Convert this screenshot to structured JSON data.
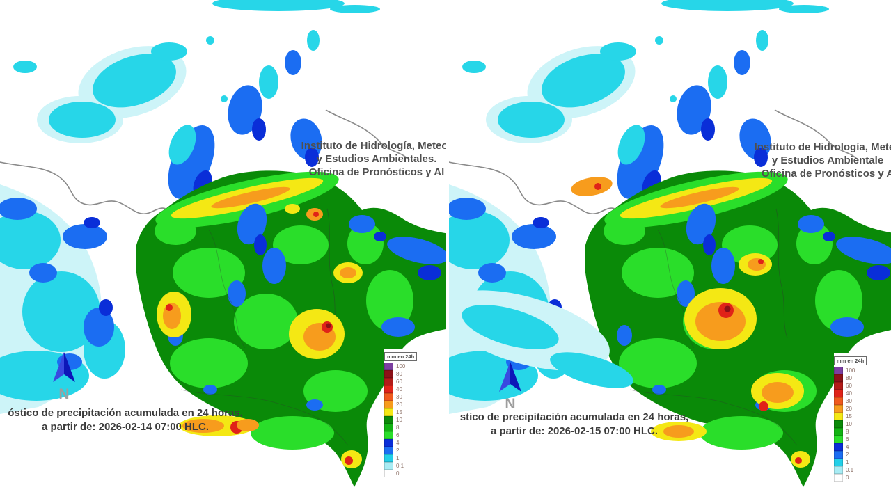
{
  "page": {
    "description": "Two side-by-side 24-hour accumulated precipitation forecast maps of Colombia"
  },
  "panels": [
    {
      "institute": {
        "line1": "Instituto de Hidrología, Meteor",
        "line2": "y Estudios Ambientales.",
        "line3": "Oficina de Pronósticos y Al"
      },
      "caption": {
        "line1": "óstico de precipitación acumulada en 24 horas,",
        "line2": "a partir de: 2026-02-14 07:00 HLC."
      },
      "forecast_start": "2026-02-14 07:00 HLC",
      "north_label": "N"
    },
    {
      "institute": {
        "line1": "Instituto de Hidrología, Meteo",
        "line2": "y Estudios Ambientale",
        "line3": "Oficina de Pronósticos y A"
      },
      "caption": {
        "line1": "stico de precipitación acumulada en 24 horas,",
        "line2": "a partir de: 2026-02-15 07:00 HLC."
      },
      "forecast_start": "2026-02-15 07:00 HLC",
      "north_label": "N"
    }
  ],
  "legend": {
    "title": "mm en 24h",
    "entries": [
      {
        "value": "100",
        "color": "#7b3fa0"
      },
      {
        "value": "80",
        "color": "#8c1117"
      },
      {
        "value": "60",
        "color": "#b31b18"
      },
      {
        "value": "40",
        "color": "#e02318"
      },
      {
        "value": "30",
        "color": "#f05a1d"
      },
      {
        "value": "20",
        "color": "#f79c1d"
      },
      {
        "value": "15",
        "color": "#f4e814"
      },
      {
        "value": "10",
        "color": "#0a8a08"
      },
      {
        "value": "8",
        "color": "#12b312"
      },
      {
        "value": "6",
        "color": "#2ade2a"
      },
      {
        "value": "4",
        "color": "#0a2ed8"
      },
      {
        "value": "2",
        "color": "#1b6df2"
      },
      {
        "value": "1",
        "color": "#22cfe8"
      },
      {
        "value": "0.1",
        "color": "#a8ecf4"
      },
      {
        "value": "0",
        "color": "#ffffff"
      }
    ]
  },
  "map_colors": {
    "ocean_light_rain": "#27d6e8",
    "ocean_trace_rain": "#cdf4f8",
    "rain_blue": "#1b6df2",
    "rain_dark_blue": "#0a2ed8",
    "land_rain_dark_green": "#0a8a08",
    "land_rain_bright_green": "#2ade2a",
    "rain_yellow": "#f4e814",
    "rain_orange": "#f79c1d",
    "rain_red": "#e02318",
    "coastline_gray": "#8a8a8a"
  }
}
